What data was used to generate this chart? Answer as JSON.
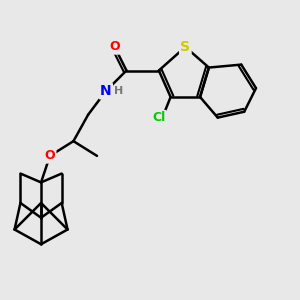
{
  "background_color": "#e8e8e8",
  "line_color": "#000000",
  "line_width": 1.8,
  "atom_colors": {
    "S": "#cccc00",
    "O_carbonyl": "#ff0000",
    "O_ether": "#ff0000",
    "N": "#0000ff",
    "Cl": "#00cc00",
    "H": "#888888",
    "C": "#000000"
  },
  "font_size_atoms": 9,
  "figsize": [
    3.0,
    3.0
  ],
  "dpi": 100
}
